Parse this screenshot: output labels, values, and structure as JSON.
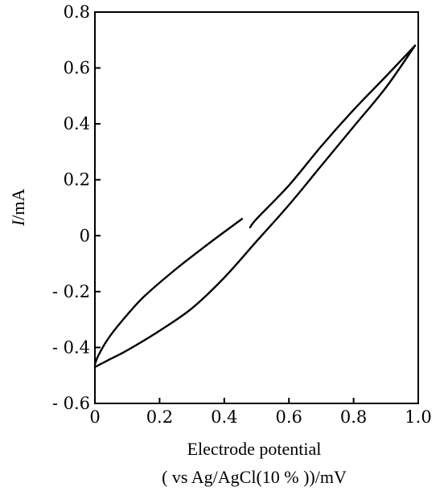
{
  "chart_data": {
    "type": "line",
    "title": "",
    "xlabel_line1": "Electrode potential",
    "xlabel_line2": "( vs Ag/AgCl(10 % ))/mV",
    "ylabel_italic": "I",
    "ylabel_rest": "/mA",
    "xlim": [
      0,
      1.0
    ],
    "ylim": [
      -0.6,
      0.8
    ],
    "x_ticks": [
      0,
      0.2,
      0.4,
      0.6,
      0.8,
      1.0
    ],
    "x_tick_labels": [
      "0",
      "0.2",
      "0.4",
      "0.6",
      "0.8",
      "1.0"
    ],
    "y_ticks": [
      0.8,
      0.6,
      0.4,
      0.2,
      0,
      -0.2,
      -0.4,
      -0.6
    ],
    "y_tick_labels": [
      "0.8",
      "0.6",
      "0.4",
      "0.2",
      "0",
      "- 0.2",
      "- 0.4",
      "- 0.6"
    ],
    "grid": false,
    "series": [
      {
        "x": [
          0.455,
          0.35,
          0.25,
          0.15,
          0.08,
          0.04,
          0.01,
          0.0
        ],
        "y": [
          0.06,
          -0.03,
          -0.12,
          -0.22,
          -0.31,
          -0.37,
          -0.43,
          -0.46
        ]
      },
      {
        "x": [
          0.0,
          0.05,
          0.1,
          0.2,
          0.3,
          0.4,
          0.5,
          0.6,
          0.7,
          0.8,
          0.9,
          0.99
        ],
        "y": [
          -0.47,
          -0.44,
          -0.41,
          -0.34,
          -0.26,
          -0.15,
          -0.02,
          0.11,
          0.25,
          0.39,
          0.53,
          0.68
        ]
      },
      {
        "x": [
          0.99,
          0.9,
          0.8,
          0.7,
          0.6,
          0.5,
          0.48
        ],
        "y": [
          0.68,
          0.57,
          0.45,
          0.32,
          0.18,
          0.06,
          0.03
        ]
      }
    ]
  }
}
